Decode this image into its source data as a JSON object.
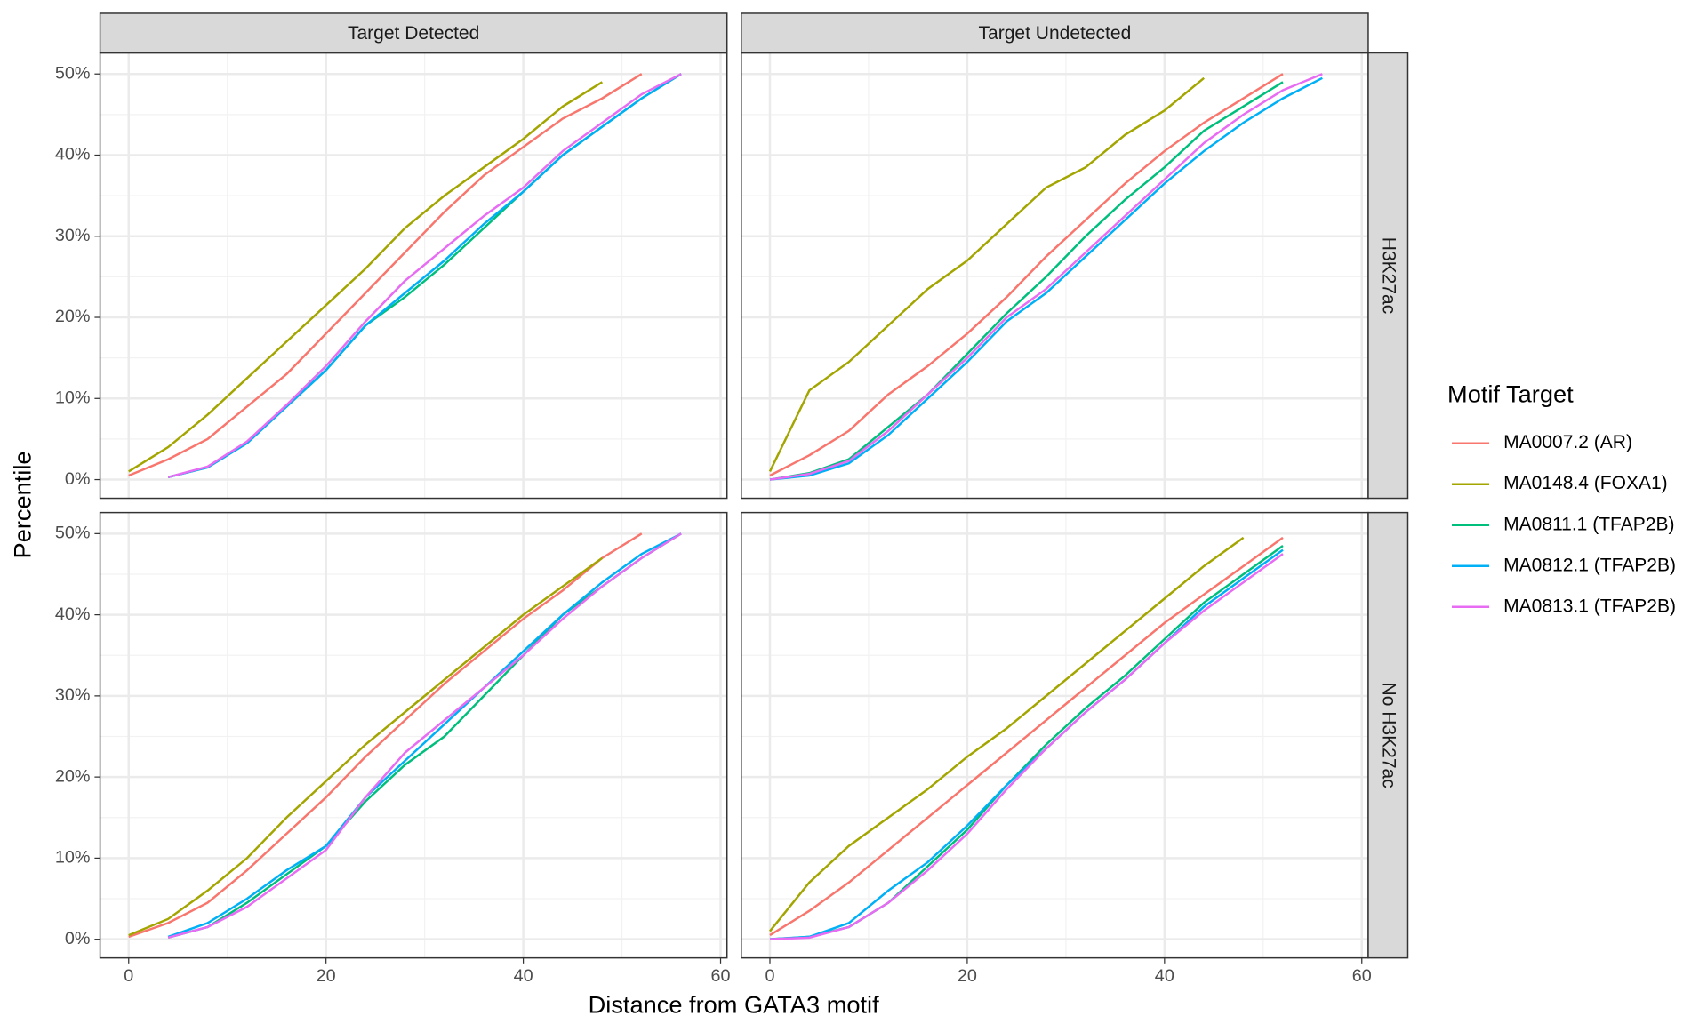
{
  "chart_data": [
    {
      "type": "line",
      "facet_col": "Target Detected",
      "xlabel": "Distance from GATA3 motif",
      "ylabel": "Percentile",
      "legend_title": "Motif Target",
      "x": [
        0,
        4,
        8,
        12,
        16,
        20,
        24,
        28,
        32,
        36,
        40,
        44,
        48,
        52,
        56
      ],
      "xlim": [
        -2.9,
        60.65
      ],
      "ylim": [
        -2.3,
        52.6
      ],
      "xticks": [
        0,
        20,
        40,
        60
      ],
      "xminor": [
        10,
        30,
        50
      ],
      "yminor": [
        5,
        15,
        25,
        35,
        45
      ],
      "yticks": [
        {
          "value": 0,
          "label": "0%"
        },
        {
          "value": 10,
          "label": "10%"
        },
        {
          "value": 20,
          "label": "20%"
        },
        {
          "value": 30,
          "label": "30%"
        },
        {
          "value": 40,
          "label": "40%"
        },
        {
          "value": 50,
          "label": "50%"
        }
      ],
      "series": [
        {
          "name": "MA0007.2 (AR)",
          "color": "#f8766d",
          "values": [
            0.5,
            2.5,
            5,
            9,
            13,
            18,
            23,
            28,
            33,
            37.5,
            41,
            44.5,
            47,
            50,
            null
          ]
        },
        {
          "name": "MA0148.4 (FOXA1)",
          "color": "#a3a500",
          "values": [
            1,
            4,
            8,
            12.5,
            17,
            21.5,
            26,
            31,
            35,
            38.5,
            42,
            46,
            49,
            null,
            null
          ]
        },
        {
          "name": "MA0811.1 (TFAP2B)",
          "color": "#00bf7d",
          "values": [
            null,
            0.3,
            1.5,
            4.5,
            9,
            13.5,
            19,
            22.5,
            26.5,
            31,
            35.5,
            40,
            43.5,
            47,
            50
          ]
        },
        {
          "name": "MA0812.1 (TFAP2B)",
          "color": "#00b0f6",
          "values": [
            null,
            0.3,
            1.5,
            4.5,
            9,
            13.5,
            19,
            23,
            27,
            31.5,
            35.5,
            40,
            43.5,
            47,
            50
          ]
        },
        {
          "name": "MA0813.1 (TFAP2B)",
          "color": "#e76bf3",
          "values": [
            null,
            0.3,
            1.6,
            4.7,
            9.2,
            14,
            19.5,
            24.5,
            28.5,
            32.5,
            36,
            40.5,
            44,
            47.5,
            50
          ]
        }
      ]
    },
    {
      "type": "line",
      "facet_col": "Target Undetected",
      "facet_row": "H3K27ac",
      "x": [
        0,
        4,
        8,
        12,
        16,
        20,
        24,
        28,
        32,
        36,
        40,
        44,
        48,
        52,
        56
      ],
      "xlim": [
        -2.9,
        60.65
      ],
      "ylim": [
        -2.3,
        52.6
      ],
      "xticks": [
        0,
        20,
        40,
        60
      ],
      "xminor": [
        10,
        30,
        50
      ],
      "yminor": [
        5,
        15,
        25,
        35,
        45
      ],
      "yticks": [
        0,
        10,
        20,
        30,
        40,
        50
      ],
      "series": [
        {
          "name": "MA0007.2 (AR)",
          "color": "#f8766d",
          "values": [
            0.5,
            3,
            6,
            10.5,
            14,
            18,
            22.5,
            27.5,
            32,
            36.5,
            40.5,
            44,
            47,
            50,
            null
          ]
        },
        {
          "name": "MA0148.4 (FOXA1)",
          "color": "#a3a500",
          "values": [
            1,
            11,
            14.5,
            19,
            23.5,
            27,
            31.5,
            36,
            38.5,
            42.5,
            45.5,
            49.5,
            null,
            null,
            null
          ]
        },
        {
          "name": "MA0811.1 (TFAP2B)",
          "color": "#00bf7d",
          "values": [
            0,
            0.8,
            2.5,
            6.5,
            10.5,
            15.5,
            20.5,
            25,
            30,
            34.5,
            38.5,
            43,
            46,
            49,
            null
          ]
        },
        {
          "name": "MA0812.1 (TFAP2B)",
          "color": "#00b0f6",
          "values": [
            0,
            0.5,
            2,
            5.5,
            10,
            14.5,
            19.5,
            23,
            27.5,
            32,
            36.5,
            40.5,
            44,
            47,
            49.5
          ]
        },
        {
          "name": "MA0813.1 (TFAP2B)",
          "color": "#e76bf3",
          "values": [
            0,
            0.7,
            2.3,
            6,
            10.5,
            15,
            20,
            23.5,
            28,
            32.5,
            37,
            41.5,
            45,
            48,
            50
          ]
        }
      ]
    },
    {
      "type": "line",
      "x": [
        0,
        4,
        8,
        12,
        16,
        20,
        24,
        28,
        32,
        36,
        40,
        44,
        48,
        52,
        56
      ],
      "xlim": [
        -2.9,
        60.65
      ],
      "ylim": [
        -2.3,
        52.6
      ],
      "xticks": [
        0,
        20,
        40,
        60
      ],
      "xminor": [
        10,
        30,
        50
      ],
      "yminor": [
        5,
        15,
        25,
        35,
        45
      ],
      "yticks": [
        {
          "value": 0,
          "label": "0%"
        },
        {
          "value": 10,
          "label": "10%"
        },
        {
          "value": 20,
          "label": "20%"
        },
        {
          "value": 30,
          "label": "30%"
        },
        {
          "value": 40,
          "label": "40%"
        },
        {
          "value": 50,
          "label": "50%"
        }
      ],
      "series": [
        {
          "name": "MA0007.2 (AR)",
          "color": "#f8766d",
          "values": [
            0.3,
            2,
            4.5,
            8.5,
            13,
            17.5,
            22.5,
            27,
            31.5,
            35.5,
            39.5,
            43,
            47,
            50,
            null
          ]
        },
        {
          "name": "MA0148.4 (FOXA1)",
          "color": "#a3a500",
          "values": [
            0.5,
            2.5,
            6,
            10,
            15,
            19.5,
            24,
            28,
            32,
            36,
            40,
            43.5,
            47,
            null,
            null
          ]
        },
        {
          "name": "MA0811.1 (TFAP2B)",
          "color": "#00bf7d",
          "values": [
            null,
            0.2,
            1.5,
            4.5,
            8,
            11.5,
            17,
            21.5,
            25,
            30,
            35,
            40,
            43.5,
            47,
            50
          ]
        },
        {
          "name": "MA0812.1 (TFAP2B)",
          "color": "#00b0f6",
          "values": [
            null,
            0.3,
            2,
            5,
            8.5,
            11.5,
            17.5,
            22,
            26.5,
            31,
            35.5,
            40,
            44,
            47.5,
            50
          ]
        },
        {
          "name": "MA0813.1 (TFAP2B)",
          "color": "#e76bf3",
          "values": [
            null,
            0.2,
            1.5,
            4,
            7.5,
            11,
            17.5,
            23,
            27,
            31,
            35,
            39.5,
            43.5,
            47,
            50
          ]
        }
      ]
    },
    {
      "type": "line",
      "facet_row": "No H3K27ac",
      "x": [
        0,
        4,
        8,
        12,
        16,
        20,
        24,
        28,
        32,
        36,
        40,
        44,
        48,
        52,
        56
      ],
      "xlim": [
        -2.9,
        60.65
      ],
      "ylim": [
        -2.3,
        52.6
      ],
      "xticks": [
        0,
        20,
        40,
        60
      ],
      "xminor": [
        10,
        30,
        50
      ],
      "yminor": [
        5,
        15,
        25,
        35,
        45
      ],
      "yticks": [
        0,
        10,
        20,
        30,
        40,
        50
      ],
      "series": [
        {
          "name": "MA0007.2 (AR)",
          "color": "#f8766d",
          "values": [
            0.5,
            3.5,
            7,
            11,
            15,
            19,
            23,
            27,
            31,
            35,
            39,
            42.5,
            46,
            49.5,
            null
          ]
        },
        {
          "name": "MA0148.4 (FOXA1)",
          "color": "#a3a500",
          "values": [
            1,
            7,
            11.5,
            15,
            18.5,
            22.5,
            26,
            30,
            34,
            38,
            42,
            46,
            49.5,
            null,
            null
          ]
        },
        {
          "name": "MA0811.1 (TFAP2B)",
          "color": "#00bf7d",
          "values": [
            0,
            0.3,
            1.5,
            4.5,
            9,
            13.5,
            19,
            24,
            28.5,
            32.5,
            37,
            41.5,
            45,
            48.5,
            null
          ]
        },
        {
          "name": "MA0812.1 (TFAP2B)",
          "color": "#00b0f6",
          "values": [
            0,
            0.3,
            2,
            6,
            9.5,
            14,
            19,
            23.5,
            28,
            32,
            36.5,
            41,
            44.5,
            48,
            null
          ]
        },
        {
          "name": "MA0813.1 (TFAP2B)",
          "color": "#e76bf3",
          "values": [
            0,
            0.2,
            1.5,
            4.5,
            8.5,
            13,
            18.5,
            23.5,
            28,
            32,
            36.5,
            40.5,
            44,
            47.5,
            null
          ]
        }
      ]
    }
  ]
}
